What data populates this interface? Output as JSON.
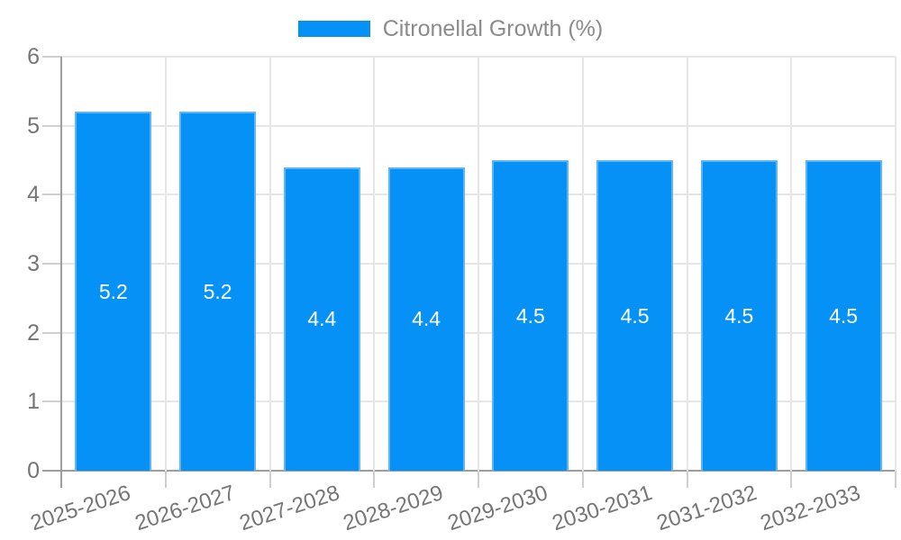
{
  "chart_data": {
    "type": "bar",
    "title": "",
    "xlabel": "",
    "ylabel": "",
    "legend": {
      "label": "Citronellal Growth (%)",
      "position": "top"
    },
    "categories": [
      "2025-2026",
      "2026-2027",
      "2027-2028",
      "2028-2029",
      "2029-2030",
      "2030-2031",
      "2031-2032",
      "2032-2033"
    ],
    "series": [
      {
        "name": "Citronellal Growth (%)",
        "values": [
          5.2,
          5.2,
          4.4,
          4.4,
          4.5,
          4.5,
          4.5,
          4.5
        ],
        "value_labels": [
          "5.2",
          "5.2",
          "4.4",
          "4.4",
          "4.5",
          "4.5",
          "4.5",
          "4.5"
        ]
      }
    ],
    "ylim": [
      0,
      6
    ],
    "ytick_step": 1,
    "ytick_labels": [
      "0",
      "1",
      "2",
      "3",
      "4",
      "5",
      "6"
    ],
    "grid": "on",
    "x_label_rotation_deg": -18
  },
  "colors": {
    "bar_fill": "#0591f5",
    "bar_border": "#5eb5f7",
    "grid_line": "#e6e6e6",
    "axis_line": "#9e9e9e",
    "tick_mark": "#cfcfcf",
    "tick_text": "#757575",
    "legend_text": "#8b8b8b",
    "value_label_text": "#ffffff",
    "background": "#ffffff"
  }
}
